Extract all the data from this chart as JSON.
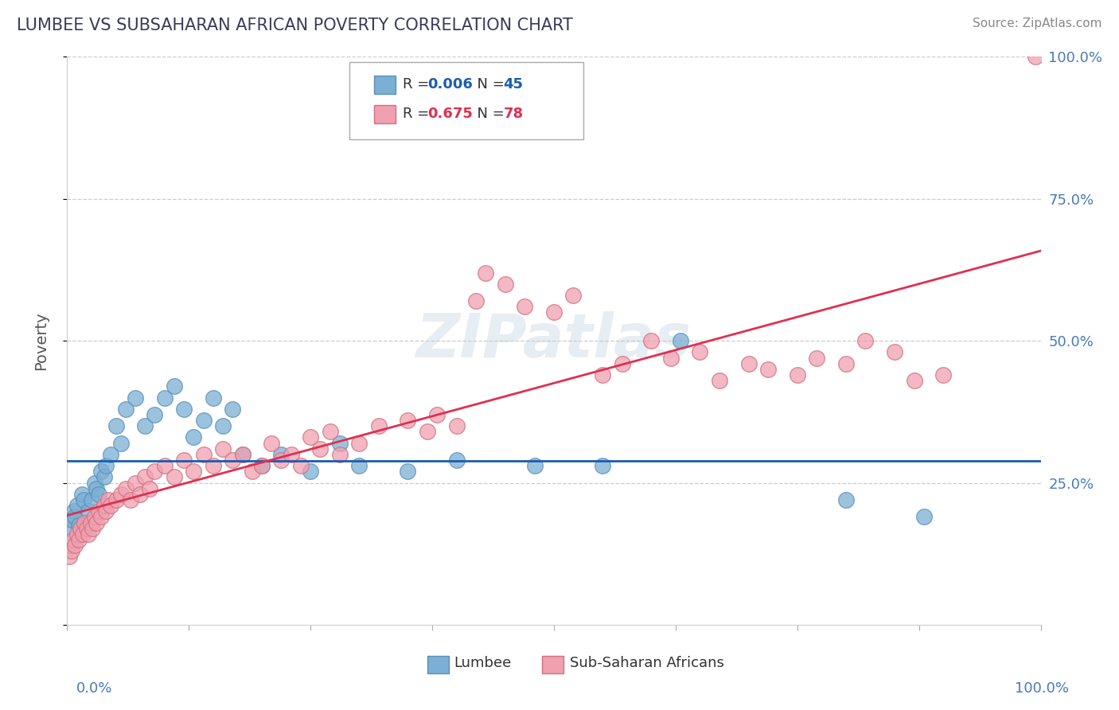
{
  "title": "LUMBEE VS SUBSAHARAN AFRICAN POVERTY CORRELATION CHART",
  "source": "Source: ZipAtlas.com",
  "ylabel": "Poverty",
  "lumbee_color": "#7bafd4",
  "lumbee_edge": "#5a8fb8",
  "subsaharan_color": "#f0a0b0",
  "subsaharan_edge": "#d07080",
  "lumbee_line_color": "#1a5cb0",
  "subsaharan_line_color": "#e03050",
  "watermark": "ZIPatlas",
  "title_color": "#3a3a5c",
  "axis_label_color": "#4a7ab8",
  "background_color": "#ffffff",
  "grid_color": "#cccccc",
  "lumbee_R": "0.006",
  "lumbee_N": "45",
  "subsaharan_R": "0.675",
  "subsaharan_N": "78",
  "lumbee_x": [
    0.3,
    0.5,
    0.7,
    0.8,
    1.0,
    1.2,
    1.5,
    1.7,
    2.0,
    2.2,
    2.5,
    2.8,
    3.0,
    3.2,
    3.5,
    3.8,
    4.0,
    4.5,
    5.0,
    5.5,
    6.0,
    7.0,
    8.0,
    9.0,
    10.0,
    11.0,
    12.0,
    13.0,
    14.0,
    15.0,
    16.0,
    17.0,
    18.0,
    20.0,
    22.0,
    25.0,
    28.0,
    30.0,
    35.0,
    40.0,
    48.0,
    55.0,
    63.0,
    80.0,
    88.0
  ],
  "lumbee_y": [
    17.0,
    18.5,
    20.0,
    19.0,
    21.0,
    17.5,
    23.0,
    22.0,
    18.0,
    20.0,
    22.0,
    25.0,
    24.0,
    23.0,
    27.0,
    26.0,
    28.0,
    30.0,
    35.0,
    32.0,
    38.0,
    40.0,
    35.0,
    37.0,
    40.0,
    42.0,
    38.0,
    33.0,
    36.0,
    40.0,
    35.0,
    38.0,
    30.0,
    28.0,
    30.0,
    27.0,
    32.0,
    28.0,
    27.0,
    29.0,
    28.0,
    28.0,
    50.0,
    22.0,
    19.0
  ],
  "subsaharan_x": [
    0.2,
    0.4,
    0.5,
    0.6,
    0.8,
    1.0,
    1.2,
    1.4,
    1.6,
    1.8,
    2.0,
    2.2,
    2.4,
    2.6,
    2.8,
    3.0,
    3.2,
    3.5,
    3.8,
    4.0,
    4.2,
    4.5,
    5.0,
    5.5,
    6.0,
    6.5,
    7.0,
    7.5,
    8.0,
    8.5,
    9.0,
    10.0,
    11.0,
    12.0,
    13.0,
    14.0,
    15.0,
    16.0,
    17.0,
    18.0,
    19.0,
    20.0,
    21.0,
    22.0,
    23.0,
    24.0,
    25.0,
    26.0,
    27.0,
    28.0,
    30.0,
    32.0,
    35.0,
    37.0,
    38.0,
    40.0,
    42.0,
    43.0,
    45.0,
    47.0,
    50.0,
    52.0,
    55.0,
    57.0,
    60.0,
    62.0,
    65.0,
    67.0,
    70.0,
    72.0,
    75.0,
    77.0,
    80.0,
    82.0,
    85.0,
    87.0,
    90.0,
    99.5
  ],
  "subsaharan_y": [
    12.0,
    14.0,
    13.0,
    15.0,
    14.0,
    16.0,
    15.0,
    17.0,
    16.0,
    18.0,
    17.0,
    16.0,
    18.0,
    17.0,
    19.0,
    18.0,
    20.0,
    19.0,
    21.0,
    20.0,
    22.0,
    21.0,
    22.0,
    23.0,
    24.0,
    22.0,
    25.0,
    23.0,
    26.0,
    24.0,
    27.0,
    28.0,
    26.0,
    29.0,
    27.0,
    30.0,
    28.0,
    31.0,
    29.0,
    30.0,
    27.0,
    28.0,
    32.0,
    29.0,
    30.0,
    28.0,
    33.0,
    31.0,
    34.0,
    30.0,
    32.0,
    35.0,
    36.0,
    34.0,
    37.0,
    35.0,
    57.0,
    62.0,
    60.0,
    56.0,
    55.0,
    58.0,
    44.0,
    46.0,
    50.0,
    47.0,
    48.0,
    43.0,
    46.0,
    45.0,
    44.0,
    47.0,
    46.0,
    50.0,
    48.0,
    43.0,
    44.0,
    100.0
  ]
}
